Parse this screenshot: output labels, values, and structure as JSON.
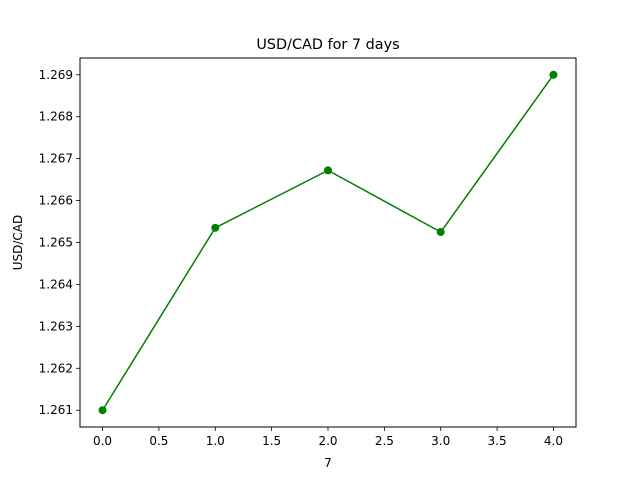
{
  "chart_data": {
    "type": "line",
    "title": "USD/CAD for 7 days",
    "xlabel": "7",
    "ylabel": "USD/CAD",
    "xlim": [
      -0.2,
      4.2
    ],
    "ylim": [
      1.2606,
      1.2694
    ],
    "x_ticks": [
      0.0,
      0.5,
      1.0,
      1.5,
      2.0,
      2.5,
      3.0,
      3.5,
      4.0
    ],
    "x_tick_labels": [
      "0.0",
      "0.5",
      "1.0",
      "1.5",
      "2.0",
      "2.5",
      "3.0",
      "3.5",
      "4.0"
    ],
    "y_ticks": [
      1.261,
      1.262,
      1.263,
      1.264,
      1.265,
      1.266,
      1.267,
      1.268,
      1.269
    ],
    "y_tick_labels": [
      "1.261",
      "1.262",
      "1.263",
      "1.264",
      "1.265",
      "1.266",
      "1.267",
      "1.268",
      "1.269"
    ],
    "grid": false,
    "series": [
      {
        "color": "#008000",
        "marker": "circle",
        "x": [
          0,
          1,
          2,
          3,
          4
        ],
        "values": [
          1.261,
          1.26535,
          1.26672,
          1.26525,
          1.269
        ]
      }
    ]
  }
}
